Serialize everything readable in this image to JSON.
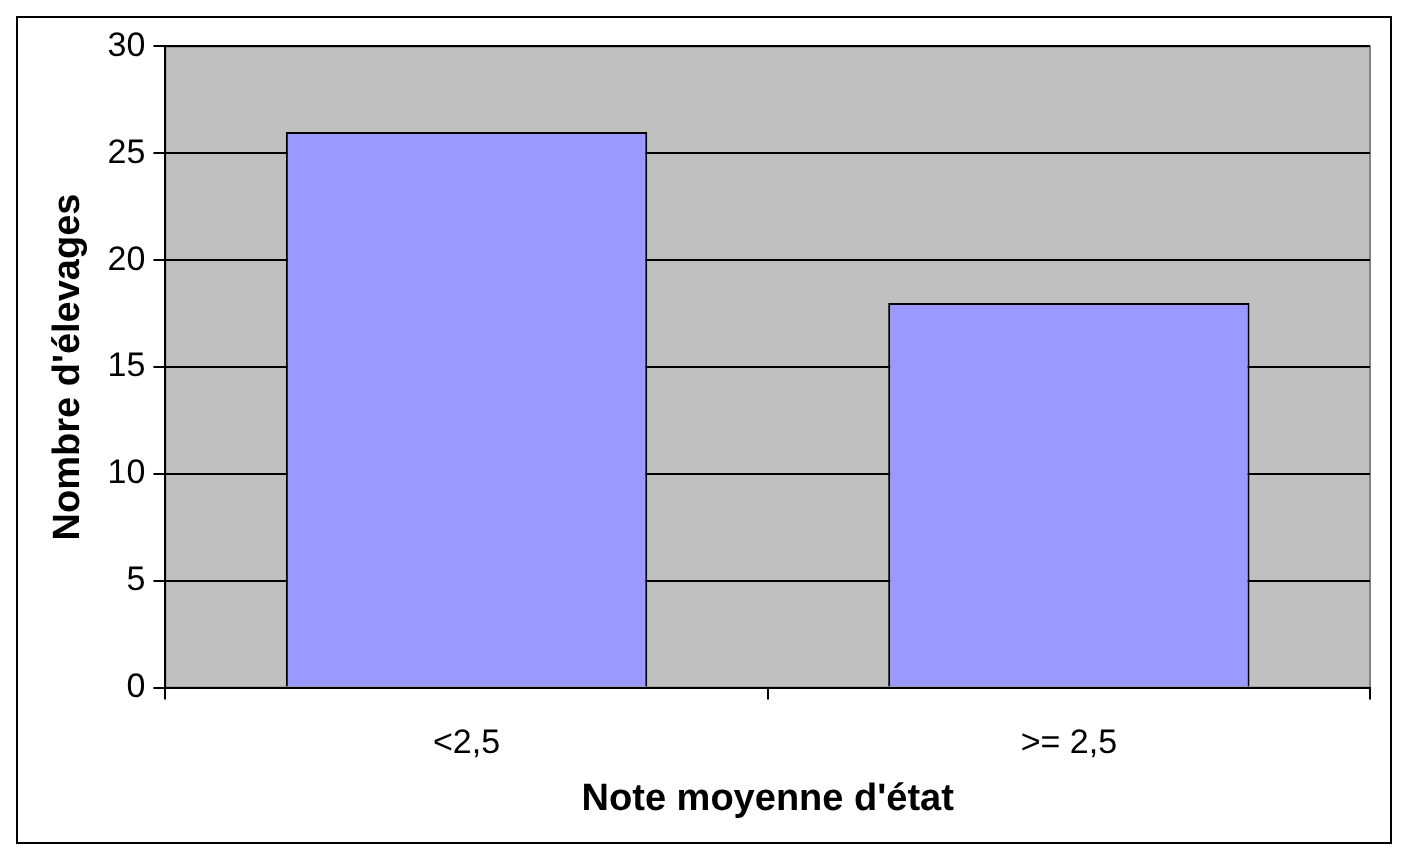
{
  "chart_data": {
    "type": "bar",
    "categories": [
      "<2,5",
      ">= 2,5"
    ],
    "values": [
      26,
      18
    ],
    "color": "#9999ff",
    "xlabel": "Note moyenne d'état",
    "ylabel": "Nombre d'élevages",
    "ylim": [
      0,
      30
    ],
    "yticks": [
      0,
      5,
      10,
      15,
      20,
      25,
      30
    ],
    "grid": "y",
    "legend": false
  }
}
